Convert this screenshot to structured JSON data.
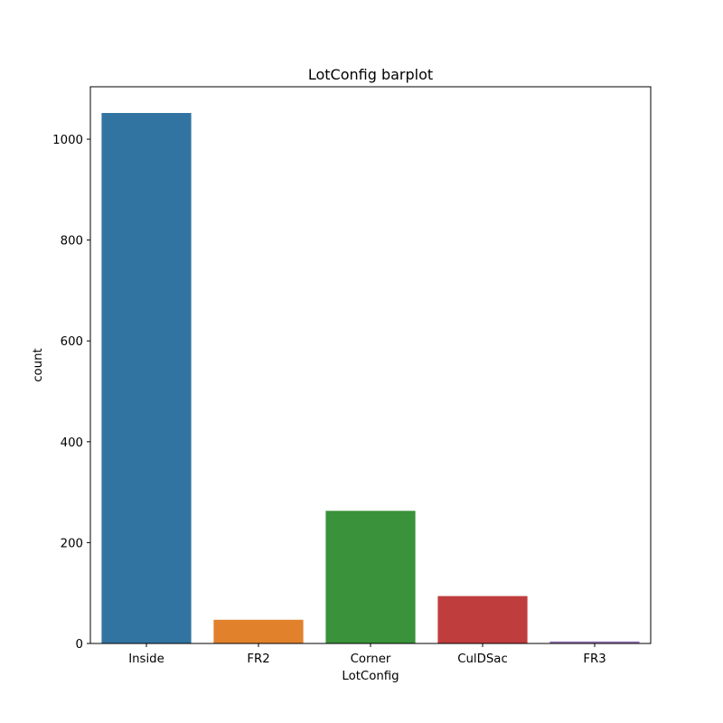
{
  "chart_data": {
    "type": "bar",
    "title": "LotConfig barplot",
    "xlabel": "LotConfig",
    "ylabel": "count",
    "categories": [
      "Inside",
      "FR2",
      "Corner",
      "CulDSac",
      "FR3"
    ],
    "values": [
      1052,
      47,
      263,
      94,
      4
    ],
    "colors": [
      "#3274a1",
      "#e1812c",
      "#3a923a",
      "#c03d3e",
      "#9372b2"
    ],
    "ylim": [
      0,
      1104
    ],
    "yticks": [
      0,
      200,
      400,
      600,
      800,
      1000
    ],
    "grid": false,
    "legend": "none"
  }
}
